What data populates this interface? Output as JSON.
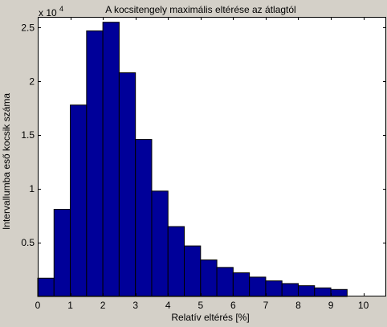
{
  "chart_data": {
    "type": "bar",
    "title": "A kocsitengely maximális eltérése az átlagtól",
    "xlabel": "Relatív eltérés [%]",
    "ylabel": "Intervallumba eső kocsik száma",
    "y_exponent_label": {
      "base": "x 10",
      "exponent": "4"
    },
    "bar_color": "#000099",
    "background_color": "#d4d0c8",
    "plot_background": "#ffffff",
    "bin_width": 0.5,
    "bins": [
      {
        "x0": 0.0,
        "x1": 0.5,
        "value": 1700
      },
      {
        "x0": 0.5,
        "x1": 1.0,
        "value": 8100
      },
      {
        "x0": 1.0,
        "x1": 1.5,
        "value": 17800
      },
      {
        "x0": 1.5,
        "x1": 2.0,
        "value": 24700
      },
      {
        "x0": 2.0,
        "x1": 2.5,
        "value": 25500
      },
      {
        "x0": 2.5,
        "x1": 3.0,
        "value": 20800
      },
      {
        "x0": 3.0,
        "x1": 3.5,
        "value": 14600
      },
      {
        "x0": 3.5,
        "x1": 4.0,
        "value": 9800
      },
      {
        "x0": 4.0,
        "x1": 4.5,
        "value": 6500
      },
      {
        "x0": 4.5,
        "x1": 5.0,
        "value": 4700
      },
      {
        "x0": 5.0,
        "x1": 5.5,
        "value": 3400
      },
      {
        "x0": 5.5,
        "x1": 6.0,
        "value": 2700
      },
      {
        "x0": 6.0,
        "x1": 6.5,
        "value": 2200
      },
      {
        "x0": 6.5,
        "x1": 7.0,
        "value": 1800
      },
      {
        "x0": 7.0,
        "x1": 7.5,
        "value": 1450
      },
      {
        "x0": 7.5,
        "x1": 8.0,
        "value": 1200
      },
      {
        "x0": 8.0,
        "x1": 8.5,
        "value": 1000
      },
      {
        "x0": 8.5,
        "x1": 9.0,
        "value": 800
      },
      {
        "x0": 9.0,
        "x1": 9.5,
        "value": 650
      }
    ],
    "xlim": [
      0,
      10.7
    ],
    "ylim": [
      0,
      26000
    ],
    "x_ticks": [
      {
        "value": 0,
        "label": "0"
      },
      {
        "value": 1,
        "label": "1"
      },
      {
        "value": 2,
        "label": "2"
      },
      {
        "value": 3,
        "label": "3"
      },
      {
        "value": 4,
        "label": "4"
      },
      {
        "value": 5,
        "label": "5"
      },
      {
        "value": 6,
        "label": "6"
      },
      {
        "value": 7,
        "label": "7"
      },
      {
        "value": 8,
        "label": "8"
      },
      {
        "value": 9,
        "label": "9"
      },
      {
        "value": 10,
        "label": "10"
      }
    ],
    "y_ticks": [
      {
        "value": 5000,
        "label": "0.5"
      },
      {
        "value": 10000,
        "label": "1"
      },
      {
        "value": 15000,
        "label": "1.5"
      },
      {
        "value": 20000,
        "label": "2"
      },
      {
        "value": 25000,
        "label": "2.5"
      }
    ],
    "grid": false,
    "legend": "none"
  }
}
